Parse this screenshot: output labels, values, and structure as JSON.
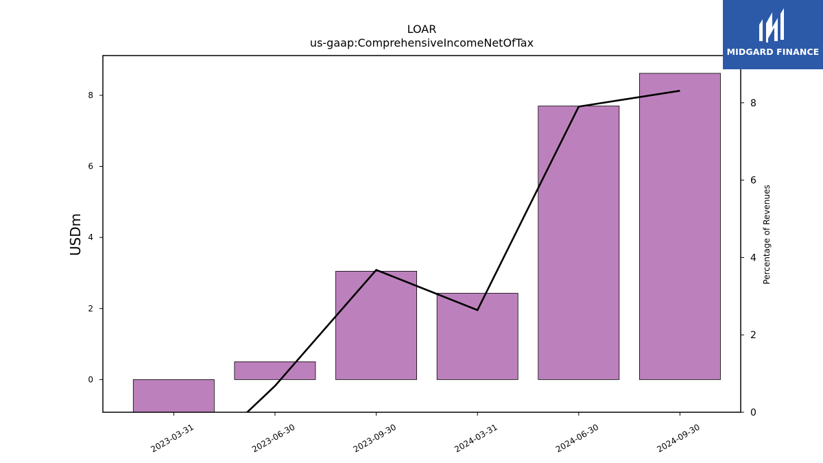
{
  "brand": {
    "name": "MIDGARD FINANCE",
    "logo_icon": "midgard-m-logo-icon",
    "color": "#2c5aa9"
  },
  "chart_data": {
    "type": "bar",
    "title": "LOAR",
    "subtitle": "us-gaap:ComprehensiveIncomeNetOfTax",
    "ylabel": "USDm",
    "ylabel_right": "Percentage of Revenues",
    "categories": [
      "2023-03-31",
      "2023-06-30",
      "2023-09-30",
      "2024-03-31",
      "2024-06-30",
      "2024-09-30"
    ],
    "series": [
      {
        "kind": "bar",
        "axis": "left",
        "values": [
          -0.92,
          0.5,
          3.05,
          2.43,
          7.7,
          8.62
        ],
        "color": "#bc81bc"
      },
      {
        "kind": "line",
        "axis": "right",
        "values": [
          -1.8,
          0.68,
          3.68,
          2.64,
          7.9,
          8.31
        ],
        "color": "#000000"
      }
    ],
    "ylim": [
      -0.92,
      9.12
    ],
    "ylim_right": [
      0,
      9.22
    ],
    "yticks": [
      0,
      2,
      4,
      6,
      8
    ],
    "yticks_right": [
      0,
      2,
      4,
      6,
      8
    ],
    "grid": false,
    "legend": "none"
  }
}
